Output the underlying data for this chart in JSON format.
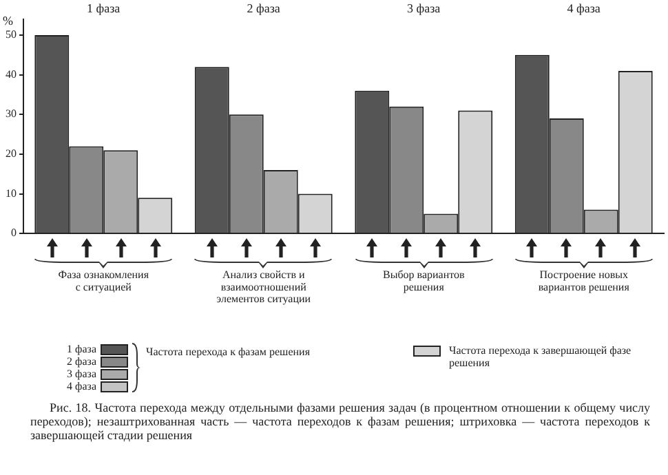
{
  "chart_data": {
    "type": "bar",
    "ylabel": "%",
    "categories": [
      "Фаза ознакомления с ситуацией",
      "Анализ свойств и взаимоотношений элементов ситуации",
      "Выбор вариантов решения",
      "Построение новых вариантов решения"
    ],
    "series": [
      {
        "color": "#555555",
        "values": [
          50,
          42,
          36,
          45
        ]
      },
      {
        "color": "#888888",
        "values": [
          22,
          30,
          32,
          29
        ]
      },
      {
        "color": "#aaaaaa",
        "values": [
          21,
          16,
          5,
          6
        ]
      },
      {
        "name": "Частота перехода к завершающей фазе решения",
        "color": "#d4d4d4",
        "values": [
          9,
          10,
          31,
          41
        ]
      }
    ],
    "ylim": [
      0,
      54
    ],
    "yticks": [
      0,
      10,
      20,
      30,
      40,
      50
    ],
    "legend": "bottom",
    "annotations": [
      "1 фаза",
      "2 фаза",
      "3 фаза",
      "4 фаза",
      "1 фаза",
      "2 фаза",
      "3 фаза",
      "4 фаза",
      "Частота перехода к фазам решения",
      "Рис. 18. Частота перехода между отдельными фазами решения задач (в процентном отношении к общему числу переходов); незаштрихованная часть — частота переходов к фазам решения; штриховка — частота переходов к завершающей стадии решения"
    ]
  }
}
